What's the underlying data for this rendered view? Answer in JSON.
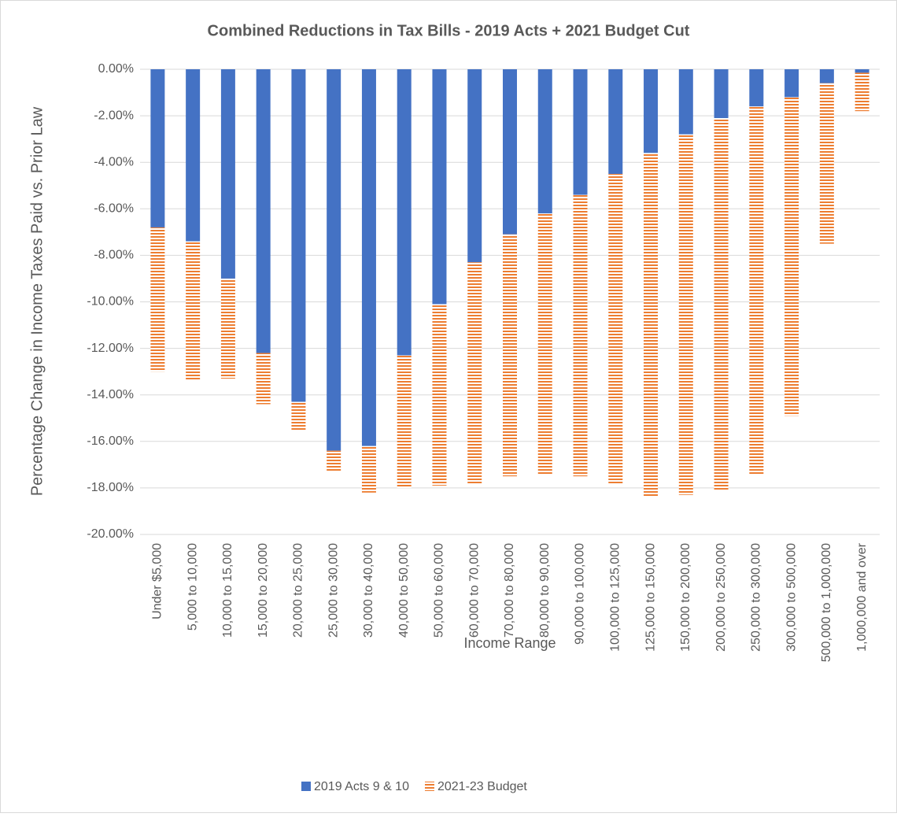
{
  "chart_data": {
    "type": "stacked_bar",
    "title": "Combined Reductions in Tax Bills - 2019 Acts + 2021 Budget Cut",
    "x_label": "Income Range",
    "y_label": "Percentage Change in Income Taxes Paid vs. Prior Law",
    "categories": [
      "Under $5,000",
      "5,000 to 10,000",
      "10,000 to 15,000",
      "15,000 to 20,000",
      "20,000 to 25,000",
      "25,000 to 30,000",
      "30,000 to 40,000",
      "40,000 to 50,000",
      "50,000 to 60,000",
      "60,000 to 70,000",
      "70,000 to 80,000",
      "80,000 to 90,000",
      "90,000 to 100,000",
      "100,000 to 125,000",
      "125,000 to 150,000",
      "150,000 to 200,000",
      "200,000 to 250,000",
      "250,000 to 300,000",
      "300,000 to 500,000",
      "500,000 to 1,000,000",
      "1,000,000 and over"
    ],
    "series": [
      {
        "name": "2019 Acts 9 & 10",
        "color": "#4472c4",
        "pattern": "solid",
        "values": [
          -6.8,
          -7.4,
          -9.0,
          -12.2,
          -14.3,
          -16.4,
          -16.2,
          -12.3,
          -10.1,
          -8.3,
          -7.1,
          -6.2,
          -5.4,
          -4.5,
          -3.6,
          -2.8,
          -2.1,
          -1.6,
          -1.2,
          -0.6,
          -0.15
        ]
      },
      {
        "name": "2021-23 Budget",
        "color": "#ed7d31",
        "pattern": "horizontal-stripes",
        "values": [
          -6.2,
          -6.0,
          -4.3,
          -2.2,
          -1.2,
          -0.9,
          -2.0,
          -5.7,
          -7.8,
          -9.5,
          -10.4,
          -11.2,
          -12.1,
          -13.3,
          -14.8,
          -15.5,
          -16.0,
          -15.8,
          -13.7,
          -6.9,
          -1.65
        ]
      }
    ],
    "ylim": [
      -20,
      0
    ],
    "yticks": [
      {
        "value": 0,
        "label": "0.00%"
      },
      {
        "value": -2,
        "label": "-2.00%"
      },
      {
        "value": -4,
        "label": "-4.00%"
      },
      {
        "value": -6,
        "label": "-6.00%"
      },
      {
        "value": -8,
        "label": "-8.00%"
      },
      {
        "value": -10,
        "label": "-10.00%"
      },
      {
        "value": -12,
        "label": "-12.00%"
      },
      {
        "value": -14,
        "label": "-14.00%"
      },
      {
        "value": -16,
        "label": "-16.00%"
      },
      {
        "value": -18,
        "label": "-18.00%"
      },
      {
        "value": -20,
        "label": "-20.00%"
      }
    ],
    "grid": true,
    "legend": "bottom"
  }
}
